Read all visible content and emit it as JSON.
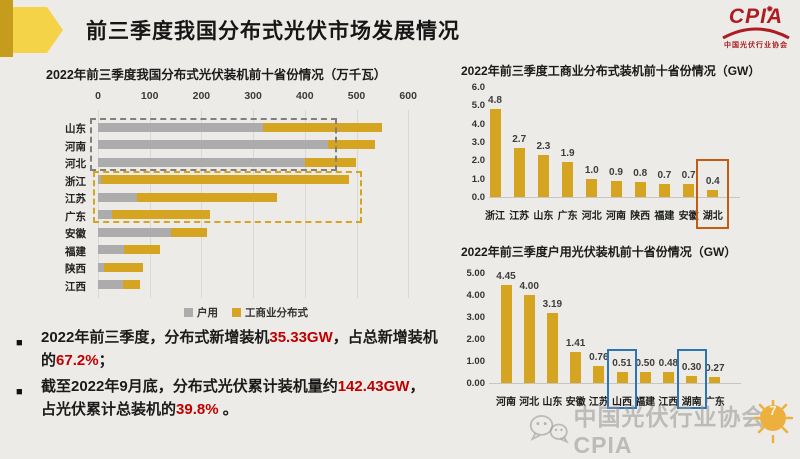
{
  "header": {
    "title": "前三季度我国分布式光伏市场发展情况",
    "logo": {
      "text": "CPIA",
      "subtext": "中国光伏行业协会"
    }
  },
  "colors": {
    "background": "#ecebe7",
    "gold": "#d5a421",
    "gray_bar": "#acacac",
    "red_text": "#c00000",
    "logo_red": "#ae1c22",
    "orange_highlight": "#c55a11",
    "blue_highlight": "#2e74b5",
    "deco_dark_gold": "#c69c1d",
    "deco_light_yellow": "#f4d348"
  },
  "chart_data": [
    {
      "id": "distributed-top10-provinces",
      "type": "bar",
      "orientation": "horizontal",
      "stacked": true,
      "title": "2022年前三季度我国分布式光伏装机前十省份情况（万千瓦）",
      "categories": [
        "山东",
        "河南",
        "河北",
        "浙江",
        "江苏",
        "广东",
        "安徽",
        "福建",
        "陕西",
        "江西"
      ],
      "series": [
        {
          "name": "户用",
          "color": "#acacac",
          "values": [
            319,
            445,
            400,
            5,
            76,
            27,
            141,
            50,
            12,
            48
          ]
        },
        {
          "name": "工商业分布式",
          "color": "#d5a421",
          "values": [
            230,
            90,
            100,
            480,
            270,
            190,
            70,
            70,
            76,
            34
          ]
        }
      ],
      "xlim": [
        0,
        600
      ],
      "xticks": [
        0,
        100,
        200,
        300,
        400,
        500,
        600
      ],
      "legend_position": "bottom",
      "annotations": [
        {
          "name": "gray-dashed-box",
          "style": "dashed",
          "color": "#7f7f7f",
          "rows": [
            "山东",
            "河南",
            "河北"
          ],
          "x_value": 463
        },
        {
          "name": "yellow-dashed-box",
          "style": "dashed",
          "color": "#d5a421",
          "rows": [
            "浙江",
            "江苏",
            "广东"
          ],
          "x_value": 510
        }
      ]
    },
    {
      "id": "commercial-industrial-top10",
      "type": "bar",
      "title": "2022年前三季度工商业分布式装机前十省份情况（GW）",
      "categories": [
        "浙江",
        "江苏",
        "山东",
        "广东",
        "河北",
        "河南",
        "陕西",
        "福建",
        "安徽",
        "湖北"
      ],
      "values": [
        4.8,
        2.7,
        2.3,
        1.9,
        1.0,
        0.9,
        0.8,
        0.7,
        0.7,
        0.4
      ],
      "labels": [
        "4.8",
        "2.7",
        "2.3",
        "1.9",
        "1.0",
        "0.9",
        "0.8",
        "0.7",
        "0.7",
        "0.4"
      ],
      "ylim": [
        0,
        6
      ],
      "yticks": [
        "6.0",
        "5.0",
        "4.0",
        "3.0",
        "2.0",
        "1.0",
        "0.0"
      ],
      "highlights": [
        "湖北"
      ],
      "highlight_color": "#c55a11"
    },
    {
      "id": "residential-top10",
      "type": "bar",
      "title": "2022年前三季度户用光伏装机前十省份情况（GW）",
      "categories": [
        "河南",
        "河北",
        "山东",
        "安徽",
        "江苏",
        "山西",
        "福建",
        "江西",
        "湖南",
        "广东"
      ],
      "values": [
        4.45,
        4.0,
        3.19,
        1.41,
        0.76,
        0.51,
        0.5,
        0.48,
        0.3,
        0.27
      ],
      "labels": [
        "4.45",
        "4.00",
        "3.19",
        "1.41",
        "0.76",
        "0.51",
        "0.50",
        "0.48",
        "0.30",
        "0.27"
      ],
      "ylim": [
        0,
        5
      ],
      "yticks": [
        "5.00",
        "4.00",
        "3.00",
        "2.00",
        "1.00",
        "0.00"
      ],
      "highlights": [
        "山西",
        "湖南"
      ],
      "highlight_color": "#2e74b5"
    }
  ],
  "bullets": [
    {
      "lines": [
        [
          {
            "t": "2022年前三季度，分布式新增装机",
            "red": false
          },
          {
            "t": "35.33GW",
            "red": true
          },
          {
            "t": "，占总新增装机",
            "red": false
          }
        ],
        [
          {
            "t": "的",
            "red": false
          },
          {
            "t": "67.2%",
            "red": true
          },
          {
            "t": "；",
            "red": false
          }
        ]
      ]
    },
    {
      "lines": [
        [
          {
            "t": "截至2022年9月底，分布式光伏累计装机量约",
            "red": false
          },
          {
            "t": "142.43GW",
            "red": true
          },
          {
            "t": "，",
            "red": false
          }
        ],
        [
          {
            "t": "占光伏累计总装机的",
            "red": false
          },
          {
            "t": "39.8%",
            "red": true
          },
          {
            "t": " 。",
            "red": false
          }
        ]
      ]
    }
  ],
  "watermark": {
    "text": "中国光伏行业协会CPIA",
    "icon": "wechat-icon"
  },
  "page_number": "7"
}
